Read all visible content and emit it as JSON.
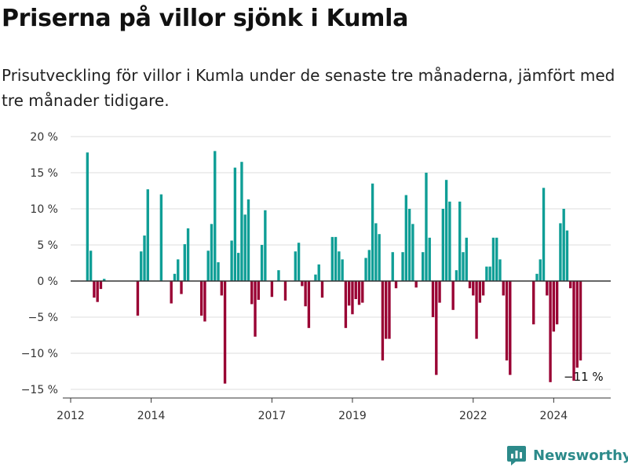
{
  "title": "Priserna på villor sjönk i Kumla",
  "subtitle": "Prisutveckling för villor i Kumla under de senaste tre månaderna, jämfört med tre månader tidigare.",
  "brand": "Newsworthy",
  "colors": {
    "positive": "#0f9e96",
    "negative": "#990033",
    "grid": "#dddddd",
    "zero": "#333333",
    "brand": "#2c8a8a"
  },
  "chart_data": {
    "type": "bar",
    "ylim": [
      -15,
      20
    ],
    "xlim": [
      "2012-01",
      "2025-06"
    ],
    "yticks": [
      {
        "value": 20,
        "label": "20 %"
      },
      {
        "value": 15,
        "label": "15 %"
      },
      {
        "value": 10,
        "label": "10 %"
      },
      {
        "value": 5,
        "label": "5 %"
      },
      {
        "value": 0,
        "label": "0 %"
      },
      {
        "value": -5,
        "label": "−5 %"
      },
      {
        "value": -10,
        "label": "−10 %"
      },
      {
        "value": -15,
        "label": "−15 %"
      }
    ],
    "xticks": [
      {
        "date": "2012-01",
        "label": "2012"
      },
      {
        "date": "2014-01",
        "label": "2014"
      },
      {
        "date": "2017-01",
        "label": "2017"
      },
      {
        "date": "2019-01",
        "label": "2019"
      },
      {
        "date": "2022-01",
        "label": "2022"
      },
      {
        "date": "2024-01",
        "label": "2024"
      }
    ],
    "annotation": {
      "date": "2024-10",
      "value": -11,
      "label": "−11 %"
    },
    "points": [
      [
        "2012-06",
        17.8
      ],
      [
        "2012-07",
        4.2
      ],
      [
        "2012-08",
        -2.3
      ],
      [
        "2012-09",
        -2.9
      ],
      [
        "2012-10",
        -1.1
      ],
      [
        "2012-11",
        0.3
      ],
      [
        "2013-09",
        -4.8
      ],
      [
        "2013-10",
        4.1
      ],
      [
        "2013-11",
        6.3
      ],
      [
        "2013-12",
        12.7
      ],
      [
        "2014-04",
        12.0
      ],
      [
        "2014-07",
        -3.1
      ],
      [
        "2014-08",
        1.0
      ],
      [
        "2014-09",
        3.0
      ],
      [
        "2014-10",
        -1.8
      ],
      [
        "2014-11",
        5.1
      ],
      [
        "2014-12",
        7.3
      ],
      [
        "2015-04",
        -4.8
      ],
      [
        "2015-05",
        -5.6
      ],
      [
        "2015-06",
        4.2
      ],
      [
        "2015-07",
        7.9
      ],
      [
        "2015-08",
        18.0
      ],
      [
        "2015-09",
        2.6
      ],
      [
        "2015-10",
        -2.0
      ],
      [
        "2015-11",
        -14.2
      ],
      [
        "2016-01",
        5.6
      ],
      [
        "2016-02",
        15.7
      ],
      [
        "2016-03",
        3.9
      ],
      [
        "2016-04",
        16.5
      ],
      [
        "2016-05",
        9.2
      ],
      [
        "2016-06",
        11.3
      ],
      [
        "2016-07",
        -3.2
      ],
      [
        "2016-08",
        -7.7
      ],
      [
        "2016-09",
        -2.6
      ],
      [
        "2016-10",
        5.0
      ],
      [
        "2016-11",
        9.8
      ],
      [
        "2017-01",
        -2.2
      ],
      [
        "2017-03",
        1.5
      ],
      [
        "2017-05",
        -2.7
      ],
      [
        "2017-08",
        4.1
      ],
      [
        "2017-09",
        5.3
      ],
      [
        "2017-10",
        -0.7
      ],
      [
        "2017-11",
        -3.5
      ],
      [
        "2017-12",
        -6.5
      ],
      [
        "2018-02",
        0.9
      ],
      [
        "2018-03",
        2.3
      ],
      [
        "2018-04",
        -2.3
      ],
      [
        "2018-07",
        6.1
      ],
      [
        "2018-08",
        6.1
      ],
      [
        "2018-09",
        4.1
      ],
      [
        "2018-10",
        3.0
      ],
      [
        "2018-11",
        -6.5
      ],
      [
        "2018-12",
        -3.4
      ],
      [
        "2019-01",
        -4.6
      ],
      [
        "2019-02",
        -2.5
      ],
      [
        "2019-03",
        -3.3
      ],
      [
        "2019-04",
        -3.0
      ],
      [
        "2019-05",
        3.2
      ],
      [
        "2019-06",
        4.3
      ],
      [
        "2019-07",
        13.5
      ],
      [
        "2019-08",
        8.0
      ],
      [
        "2019-09",
        6.5
      ],
      [
        "2019-10",
        -11.0
      ],
      [
        "2019-11",
        -8.0
      ],
      [
        "2019-12",
        -8.0
      ],
      [
        "2020-01",
        4.0
      ],
      [
        "2020-02",
        -1.0
      ],
      [
        "2020-04",
        4.0
      ],
      [
        "2020-05",
        11.9
      ],
      [
        "2020-06",
        10.0
      ],
      [
        "2020-07",
        7.9
      ],
      [
        "2020-08",
        -0.9
      ],
      [
        "2020-10",
        4.0
      ],
      [
        "2020-11",
        15.0
      ],
      [
        "2020-12",
        6.0
      ],
      [
        "2021-01",
        -5.0
      ],
      [
        "2021-02",
        -13.0
      ],
      [
        "2021-03",
        -3.0
      ],
      [
        "2021-04",
        10.0
      ],
      [
        "2021-05",
        14.0
      ],
      [
        "2021-06",
        11.0
      ],
      [
        "2021-07",
        -4.0
      ],
      [
        "2021-08",
        1.5
      ],
      [
        "2021-09",
        11.0
      ],
      [
        "2021-10",
        4.0
      ],
      [
        "2021-11",
        6.0
      ],
      [
        "2021-12",
        -1.0
      ],
      [
        "2022-01",
        -2.0
      ],
      [
        "2022-02",
        -8.0
      ],
      [
        "2022-03",
        -3.0
      ],
      [
        "2022-04",
        -2.0
      ],
      [
        "2022-05",
        2.0
      ],
      [
        "2022-06",
        2.0
      ],
      [
        "2022-07",
        6.0
      ],
      [
        "2022-08",
        6.0
      ],
      [
        "2022-09",
        3.0
      ],
      [
        "2022-10",
        -2.0
      ],
      [
        "2022-11",
        -11.0
      ],
      [
        "2022-12",
        -13.0
      ],
      [
        "2023-07",
        -6.0
      ],
      [
        "2023-08",
        1.0
      ],
      [
        "2023-09",
        3.0
      ],
      [
        "2023-10",
        12.9
      ],
      [
        "2023-11",
        -2.0
      ],
      [
        "2023-12",
        -14.0
      ],
      [
        "2024-01",
        -7.0
      ],
      [
        "2024-02",
        -6.0
      ],
      [
        "2024-03",
        8.0
      ],
      [
        "2024-04",
        10.0
      ],
      [
        "2024-05",
        7.0
      ],
      [
        "2024-06",
        -1.0
      ],
      [
        "2024-07",
        -13.8
      ],
      [
        "2024-08",
        -12.0
      ],
      [
        "2024-09",
        -11.0
      ]
    ]
  }
}
